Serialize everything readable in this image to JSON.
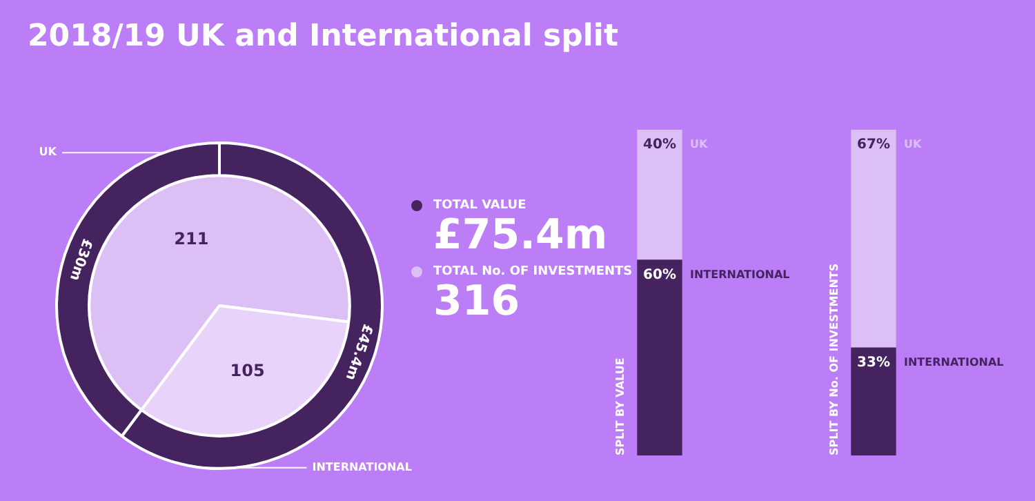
{
  "chart_data": [
    {
      "type": "donut",
      "title": "2018/19 UK and International split",
      "categories": [
        "UK",
        "INTERNATIONAL"
      ],
      "legend": "right",
      "totals": [
        "£75.4m",
        "316"
      ],
      "series": [
        {
          "name": "TOTAL VALUE",
          "color": "#45235f",
          "values": [
            30,
            45.4
          ],
          "value_labels": [
            "£30m",
            "£45.4m"
          ]
        },
        {
          "name": "TOTAL No. OF INVESTMENTS",
          "colors": [
            "#dcc0f5",
            "#e8d3fa"
          ],
          "color": "#dcc0f5",
          "values": [
            211,
            105
          ],
          "value_labels": [
            "211",
            "105"
          ]
        }
      ]
    },
    {
      "type": "bar",
      "stacked": true,
      "ylabel": "SPLIT BY VALUE",
      "categories": [
        null
      ],
      "series": [
        {
          "name": "INTERNATIONAL",
          "color": "#45235f",
          "values": [
            60
          ],
          "value_labels": [
            "60%"
          ]
        },
        {
          "name": "UK",
          "color": "#dcc0f5",
          "values": [
            40
          ],
          "value_labels": [
            "40%"
          ]
        }
      ]
    },
    {
      "type": "bar",
      "stacked": true,
      "ylabel": "SPLIT BY No. OF INVESTMENTS",
      "categories": [
        null
      ],
      "series": [
        {
          "name": "INTERNATIONAL",
          "color": "#45235f",
          "values": [
            33
          ],
          "value_labels": [
            "33%"
          ]
        },
        {
          "name": "UK",
          "color": "#dcc0f5",
          "values": [
            67
          ],
          "value_labels": [
            "67%"
          ]
        }
      ]
    }
  ]
}
